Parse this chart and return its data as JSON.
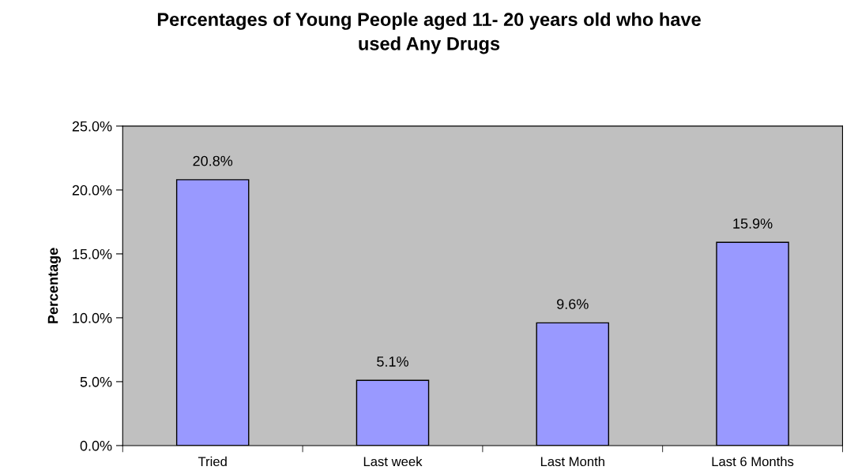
{
  "chart_data": {
    "type": "bar",
    "title": "Percentages of Young People aged 11- 20 years old who have\nused Any Drugs",
    "ylabel": "Percentage",
    "categories": [
      "Tried",
      "Last week",
      "Last Month",
      "Last 6 Months"
    ],
    "values": [
      20.8,
      5.1,
      9.6,
      15.9
    ],
    "value_labels": [
      "20.8%",
      "5.1%",
      "9.6%",
      "15.9%"
    ],
    "color": "#9999ff",
    "ylim": [
      0,
      25
    ],
    "yticks": [
      {
        "value": 0,
        "label": "0.0%"
      },
      {
        "value": 5,
        "label": "5.0%"
      },
      {
        "value": 10,
        "label": "10.0%"
      },
      {
        "value": 15,
        "label": "15.0%"
      },
      {
        "value": 20,
        "label": "20.0%"
      },
      {
        "value": 25,
        "label": "25.0%"
      }
    ],
    "grid": false,
    "legend": false
  }
}
